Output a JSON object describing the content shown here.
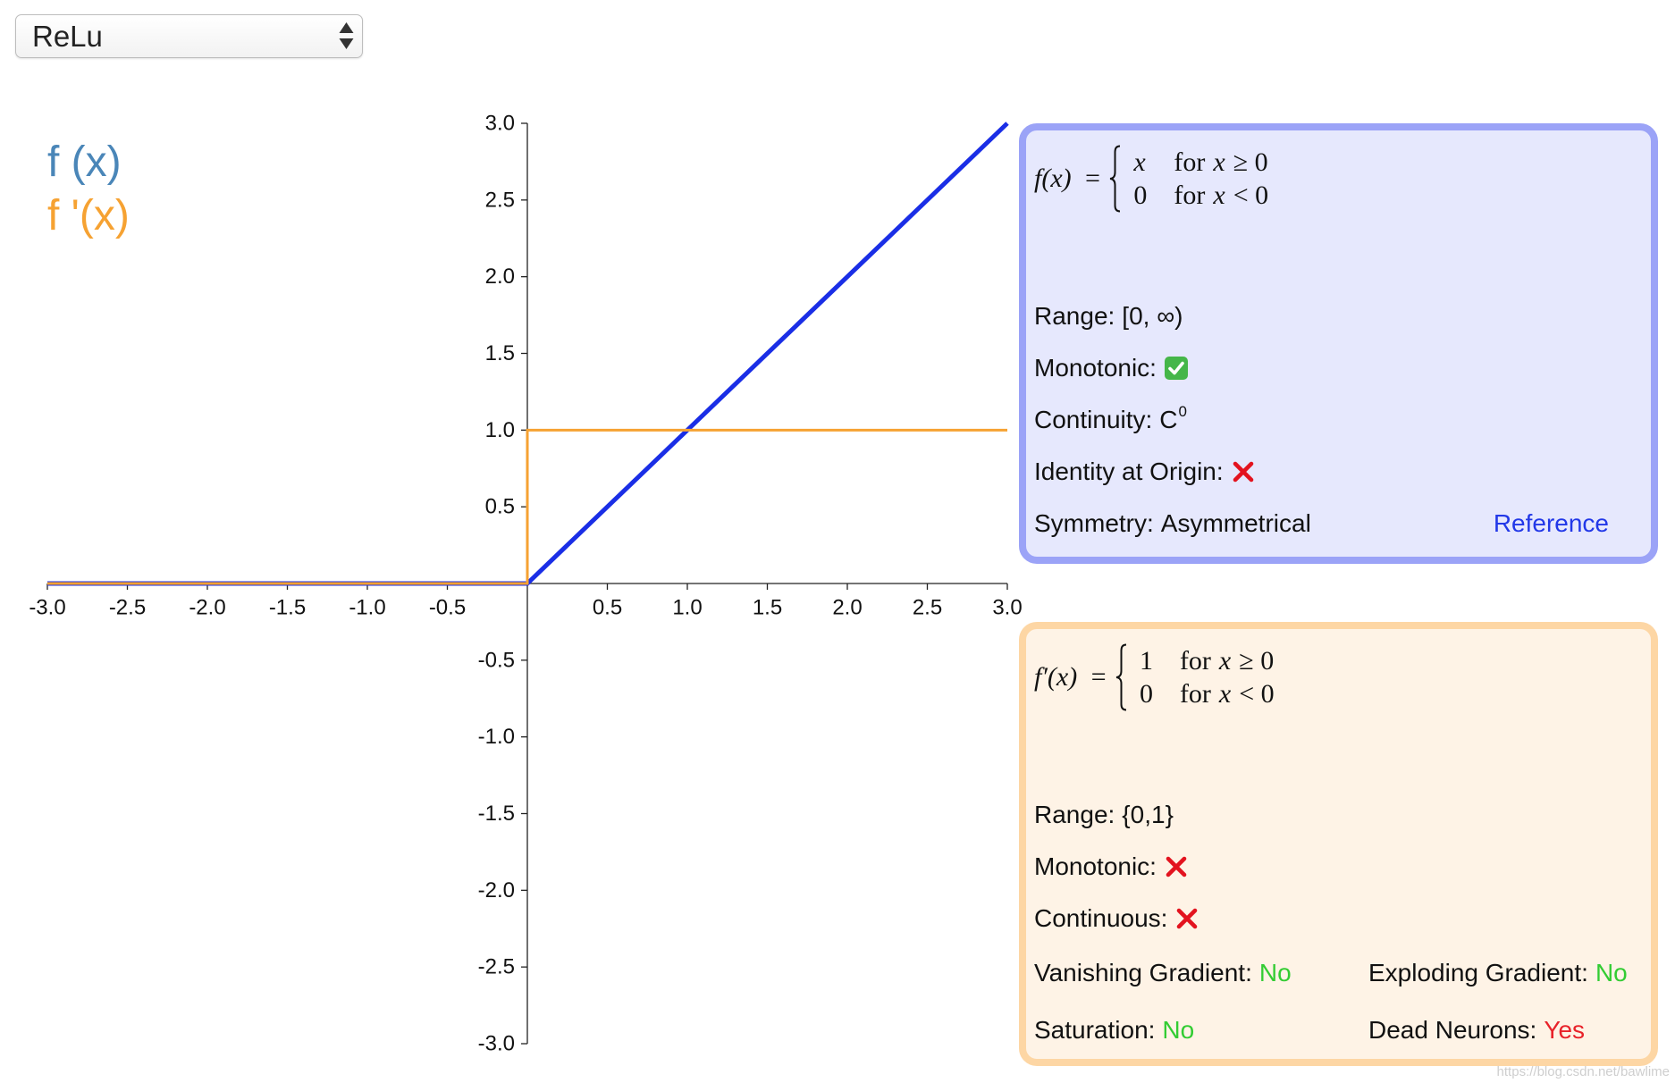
{
  "selector": {
    "value": "ReLu"
  },
  "chart_data": {
    "type": "line",
    "xlim": [
      -3,
      3
    ],
    "ylim": [
      -3,
      3
    ],
    "grid": false,
    "x_tick_labels": [
      "-3.0",
      "-2.5",
      "-2.0",
      "-1.5",
      "-1.0",
      "-0.5",
      "0.5",
      "1.0",
      "1.5",
      "2.0",
      "2.5",
      "3.0"
    ],
    "y_tick_labels": [
      "3.0",
      "2.5",
      "2.0",
      "1.5",
      "1.0",
      "0.5",
      "-0.5",
      "-1.0",
      "-1.5",
      "-2.0",
      "-2.5",
      "-3.0"
    ],
    "legend_position": "top-left",
    "legend": [
      {
        "label": "f (x)",
        "color": "#4a86b8"
      },
      {
        "label": "f '(x)",
        "color": "#f6a232"
      }
    ],
    "series": [
      {
        "name": "f (x)",
        "color": "#1a2ee6",
        "x": [
          -3,
          0,
          3
        ],
        "y": [
          0,
          0,
          3
        ]
      },
      {
        "name": "f '(x)",
        "color": "#f6a232",
        "x": [
          -3,
          0,
          0,
          3
        ],
        "y": [
          0,
          0,
          1,
          1
        ]
      }
    ]
  },
  "function_panel": {
    "colors": {
      "border": "#9ba3f7",
      "background": "#e6e8fd"
    },
    "formula": {
      "lhs": "f(x) =",
      "cases": [
        {
          "value": "x",
          "word": "for",
          "var": "x",
          "relation": "≥ 0"
        },
        {
          "value": "0",
          "word": "for",
          "var": "x",
          "relation": "< 0"
        }
      ]
    },
    "properties": [
      {
        "label": "Range:",
        "value": "[0, ∞)"
      },
      {
        "label": "Monotonic:",
        "icon": "check-icon"
      },
      {
        "label": "Continuity:",
        "value": "C",
        "superscript": "0"
      },
      {
        "label": "Identity at Origin:",
        "icon": "cross-icon"
      },
      {
        "label": "Symmetry:",
        "value": "Asymmetrical"
      }
    ],
    "reference_link": "Reference",
    "link_color": "#2238e8"
  },
  "derivative_panel": {
    "colors": {
      "border": "#fdd6a4",
      "background": "#fef3e6"
    },
    "formula": {
      "lhs": "f′(x) =",
      "cases": [
        {
          "value": "1",
          "word": "for",
          "var": "x",
          "relation": "≥ 0"
        },
        {
          "value": "0",
          "word": "for",
          "var": "x",
          "relation": "< 0"
        }
      ]
    },
    "properties": [
      {
        "label": "Range:",
        "value": "{0,1}"
      },
      {
        "label": "Monotonic:",
        "icon": "cross-icon"
      },
      {
        "label": "Continuous:",
        "icon": "cross-icon"
      }
    ],
    "gradient_properties": [
      {
        "label": "Vanishing Gradient:",
        "value": "No",
        "value_color": "#33cc33"
      },
      {
        "label": "Exploding Gradient:",
        "value": "No",
        "value_color": "#33cc33"
      },
      {
        "label": "Saturation:",
        "value": "No",
        "value_color": "#33cc33"
      },
      {
        "label": "Dead Neurons:",
        "value": "Yes",
        "value_color": "#e8222a"
      }
    ]
  },
  "icons": {
    "check_color": "#45b649",
    "cross_color": "#e3131f",
    "brace_color": "#111111"
  },
  "watermark": "https://blog.csdn.net/bawlime"
}
